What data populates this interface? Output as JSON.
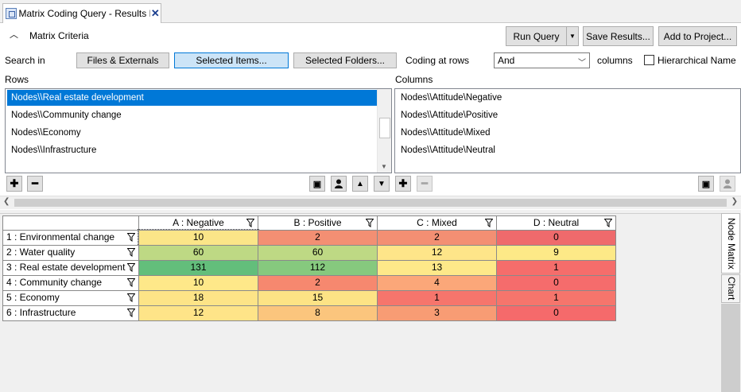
{
  "tab": {
    "title": "Matrix Coding Query - Results Pr",
    "icon": "matrix-query-icon",
    "close_icon": "close-icon"
  },
  "criteria": {
    "title": "Matrix Criteria",
    "collapse_icon": "chevron-up-icon",
    "run_query": "Run Query",
    "save_results": "Save Results...",
    "add_to_project": "Add to Project...",
    "search_in_label": "Search in",
    "files_externals": "Files & Externals",
    "selected_items": "Selected Items...",
    "selected_folders": "Selected Folders...",
    "coding_at_rows_label": "Coding at rows",
    "operator": "And",
    "columns_label": "columns",
    "hierarchical_name_label": "Hierarchical Name",
    "hierarchical_name_checked": false
  },
  "rows_panel": {
    "label": "Rows",
    "items": [
      "Nodes\\\\Real estate development",
      "Nodes\\\\Community change",
      "Nodes\\\\Economy",
      "Nodes\\\\Infrastructure"
    ],
    "selected_index": 0
  },
  "columns_panel": {
    "label": "Columns",
    "items": [
      "Nodes\\\\Attitude\\Negative",
      "Nodes\\\\Attitude\\Positive",
      "Nodes\\\\Attitude\\Mixed",
      "Nodes\\\\Attitude\\Neutral"
    ]
  },
  "toolbar_icons": [
    "plus-icon",
    "minus-icon",
    "node-picker-icon",
    "person-icon",
    "move-up-icon",
    "move-down-icon"
  ],
  "matrix": {
    "columns": [
      "A : Negative",
      "B : Positive",
      "C : Mixed",
      "D : Neutral"
    ],
    "rows": [
      {
        "label": "1 : Environmental change",
        "values": [
          "10",
          "2",
          "2",
          "0"
        ],
        "colors": [
          "#fbe588",
          "#f38f73",
          "#f38f73",
          "#ef6a6c"
        ]
      },
      {
        "label": "2 : Water quality",
        "values": [
          "60",
          "60",
          "12",
          "9"
        ],
        "colors": [
          "#bed984",
          "#bed984",
          "#fee589",
          "#fde987"
        ]
      },
      {
        "label": "3 : Real estate development",
        "values": [
          "131",
          "112",
          "13",
          "1"
        ],
        "colors": [
          "#63be7b",
          "#86c97e",
          "#fde989",
          "#f56d6b"
        ]
      },
      {
        "label": "4 : Community change",
        "values": [
          "10",
          "2",
          "4",
          "0"
        ],
        "colors": [
          "#fee889",
          "#f6886f",
          "#fba779",
          "#f56c6c"
        ]
      },
      {
        "label": "5 : Economy",
        "values": [
          "18",
          "15",
          "1",
          "1"
        ],
        "colors": [
          "#fde487",
          "#fde385",
          "#f6756c",
          "#f6756c"
        ]
      },
      {
        "label": "6 : Infrastructure",
        "values": [
          "12",
          "8",
          "3",
          "0"
        ],
        "colors": [
          "#fee488",
          "#fbc57d",
          "#f89c74",
          "#f56a6b"
        ]
      }
    ]
  },
  "side_tabs": [
    "Node Matrix",
    "Chart"
  ]
}
